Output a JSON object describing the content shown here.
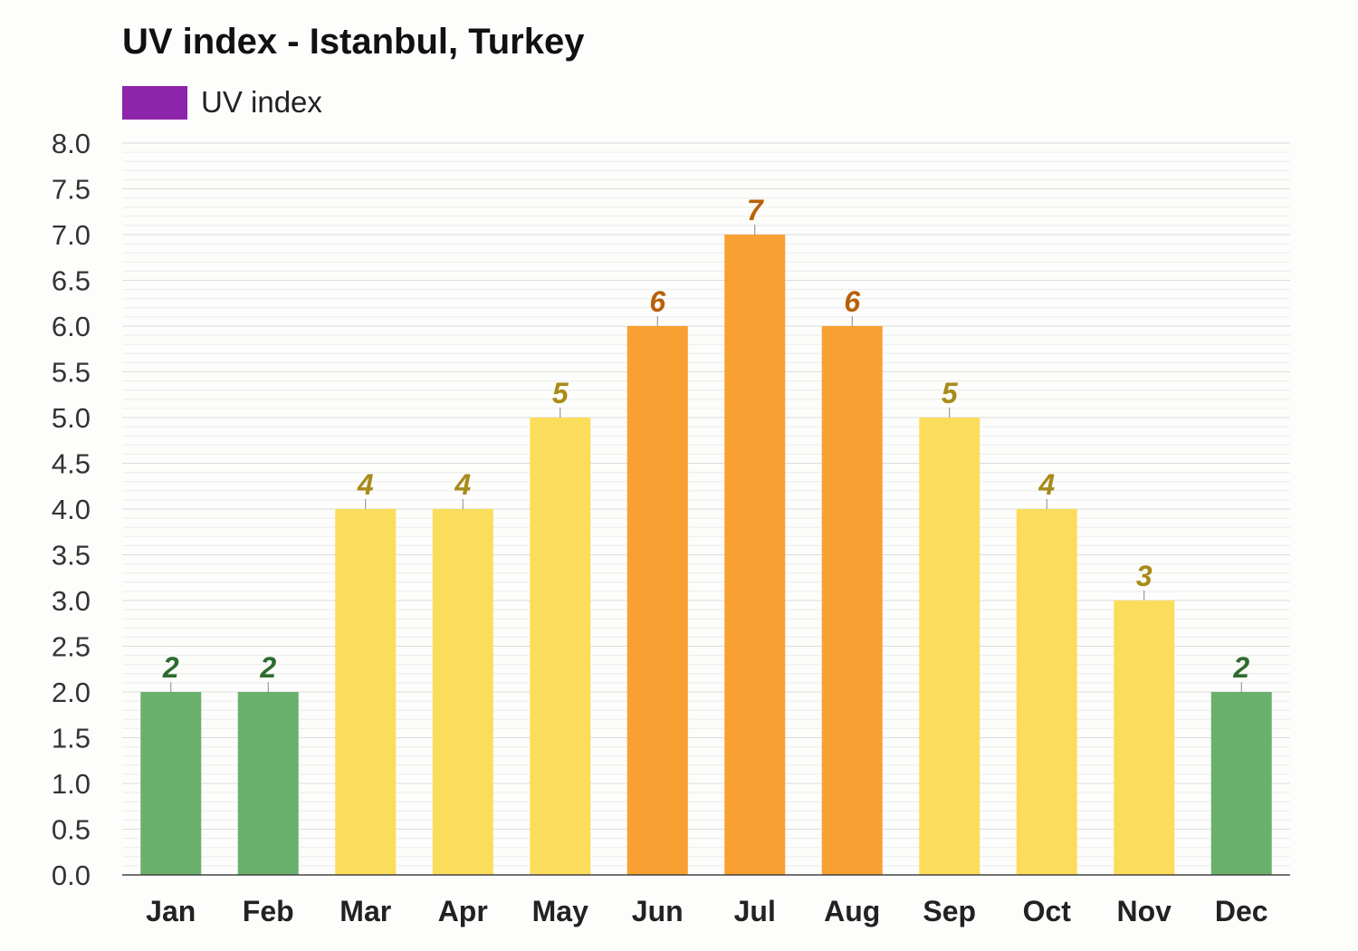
{
  "chart_data": {
    "type": "bar",
    "title": "UV index - Istanbul, Turkey",
    "categories": [
      "Jan",
      "Feb",
      "Mar",
      "Apr",
      "May",
      "Jun",
      "Jul",
      "Aug",
      "Sep",
      "Oct",
      "Nov",
      "Dec"
    ],
    "series": [
      {
        "name": "UV index",
        "values": [
          2,
          2,
          4,
          4,
          5,
          6,
          7,
          6,
          5,
          4,
          3,
          2
        ]
      }
    ],
    "data_labels": [
      "2",
      "2",
      "4",
      "4",
      "5",
      "6",
      "7",
      "6",
      "5",
      "4",
      "3",
      "2"
    ],
    "ylim": [
      0,
      8
    ],
    "y_ticks": [
      "0.0",
      "0.5",
      "1.0",
      "1.5",
      "2.0",
      "2.5",
      "3.0",
      "3.5",
      "4.0",
      "4.5",
      "5.0",
      "5.5",
      "6.0",
      "6.5",
      "7.0",
      "7.5",
      "8.0"
    ],
    "xlabel": "",
    "ylabel": "",
    "grid": true,
    "legend": {
      "position": "top-left",
      "color": "#8e24aa"
    },
    "colors": {
      "low": "#6ab06d",
      "moderate": "#fcdd5b",
      "high": "#f9a032",
      "low_label": "#2e6b2e",
      "moderate_label": "#a88b1a",
      "high_label": "#b8600a"
    }
  }
}
